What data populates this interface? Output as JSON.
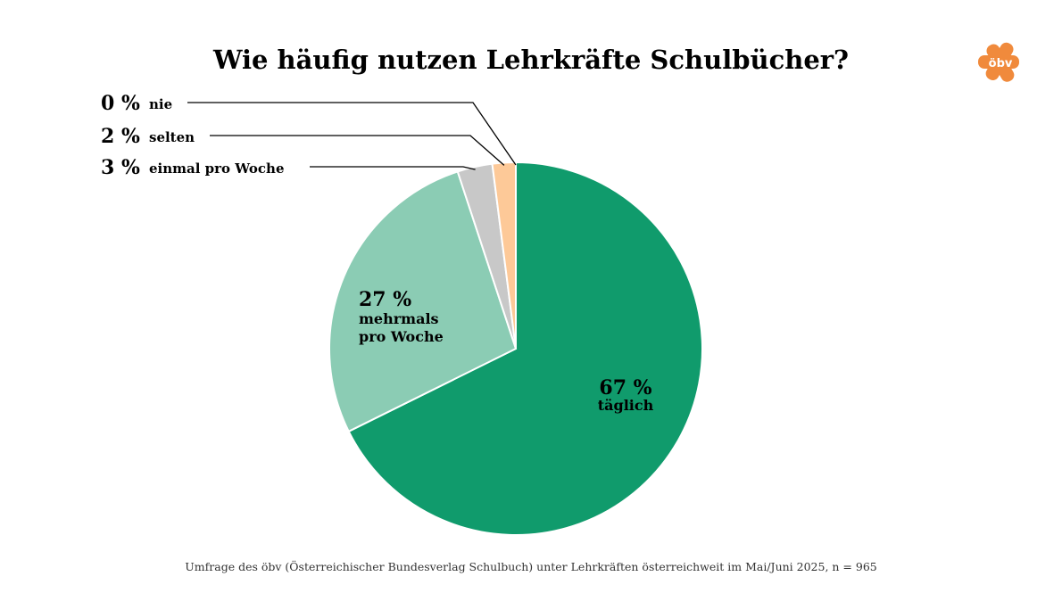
{
  "title": "Wie häufig nutzen Lehrkräfte Schulbücher?",
  "caption": "Umfrage des öbv (Österreichischer Bundesverlag Schulbuch) unter Lehrkräften österreichweit im Mai/Juni 2025, n = 965",
  "logo": {
    "text": "öbv",
    "color": "#f08a3c"
  },
  "chart_data": {
    "type": "pie",
    "title": "Wie häufig nutzen Lehrkräfte Schulbücher?",
    "slices": [
      {
        "label": "täglich",
        "value": 67,
        "pct_label": "67 %",
        "color": "#109b6c"
      },
      {
        "label": "mehrmals pro Woche",
        "label_lines": [
          "mehrmals",
          "pro Woche"
        ],
        "value": 27,
        "pct_label": "27 %",
        "color": "#8bccb4"
      },
      {
        "label": "einmal pro Woche",
        "value": 3,
        "pct_label": "3 %",
        "color": "#c8c8c8"
      },
      {
        "label": "selten",
        "value": 2,
        "pct_label": "2 %",
        "color": "#fdc998"
      },
      {
        "label": "nie",
        "value": 0,
        "pct_label": "0 %",
        "color": "#f08a3c"
      }
    ]
  }
}
